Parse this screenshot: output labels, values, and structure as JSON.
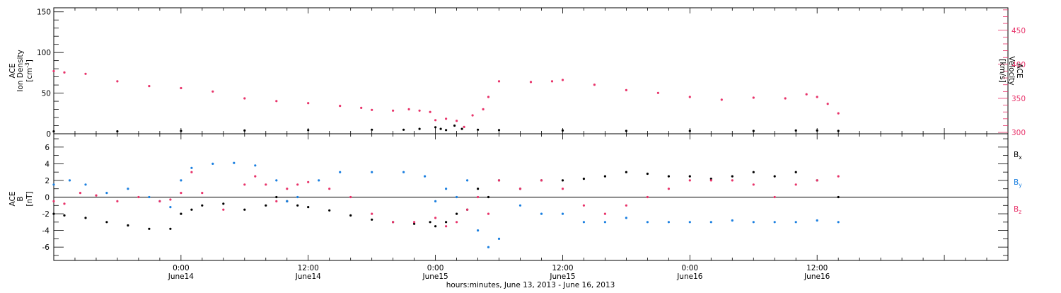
{
  "colors": {
    "axis": "#000000",
    "density": "#000000",
    "velocity": "#e8336a",
    "bx": "#000000",
    "by": "#1a7fe0",
    "bz": "#e8336a"
  },
  "x_axis": {
    "title": "hours:minutes, June 13, 2013 - June 16, 2013",
    "range": [
      0,
      90
    ],
    "ticks": [
      {
        "x": 12,
        "time": "0:00",
        "date": "June14"
      },
      {
        "x": 24,
        "time": "12:00",
        "date": "June14"
      },
      {
        "x": 36,
        "time": "0:00",
        "date": "June15"
      },
      {
        "x": 48,
        "time": "12:00",
        "date": "June15"
      },
      {
        "x": 60,
        "time": "0:00",
        "date": "June16"
      },
      {
        "x": 72,
        "time": "12:00",
        "date": "June16"
      }
    ]
  },
  "chart_data": [
    {
      "type": "scatter",
      "panel": "top",
      "left_axis": {
        "label_lines": [
          "ACE",
          "Ion Density"
        ],
        "unit_base": "[cm",
        "unit_sup": "-3",
        "unit_end": "]",
        "ylim": [
          0,
          155
        ],
        "ticks": [
          0,
          50,
          100,
          150
        ]
      },
      "right_axis": {
        "label_lines": [
          "ACE",
          "Velocity"
        ],
        "unit": "[km/s]",
        "ylim": [
          298,
          483
        ],
        "ticks": [
          300,
          350,
          400,
          450
        ]
      },
      "series": [
        {
          "key": "density",
          "axis": "left",
          "color_key": "density",
          "x": [
            0,
            6,
            12,
            18,
            24,
            30,
            33,
            34.5,
            36,
            36.5,
            37,
            37.8,
            38.5,
            40,
            42,
            48,
            54,
            60,
            66,
            70,
            72,
            74
          ],
          "y": [
            3,
            3,
            3.5,
            4,
            4.5,
            5,
            5,
            6,
            8,
            6,
            4.5,
            10,
            6,
            5,
            4.5,
            4,
            3.5,
            3.5,
            3.5,
            4,
            4,
            3.5
          ]
        },
        {
          "key": "velocity",
          "axis": "right",
          "color_key": "velocity",
          "x": [
            0,
            1,
            3,
            6,
            9,
            12,
            15,
            18,
            21,
            24,
            27,
            29,
            30,
            32,
            33.5,
            34.5,
            35.5,
            36,
            37,
            38,
            38.7,
            39.5,
            40.5,
            41,
            42,
            45,
            47,
            48,
            51,
            54,
            57,
            60,
            63,
            66,
            69,
            71,
            72,
            73,
            74
          ],
          "y": [
            390,
            388,
            386,
            375,
            368,
            365,
            360,
            350,
            346,
            343,
            339,
            336,
            333,
            332,
            334,
            332,
            330,
            318,
            320,
            317,
            308,
            325,
            334,
            352,
            375,
            374,
            375,
            377,
            370,
            362,
            358,
            352,
            348,
            351,
            350,
            356,
            352,
            342,
            328
          ]
        }
      ]
    },
    {
      "type": "scatter",
      "panel": "bottom",
      "left_axis": {
        "label_lines": [
          "ACE",
          "B"
        ],
        "unit": "[nT]",
        "ylim": [
          -7.6,
          7.6
        ],
        "ticks": [
          -6,
          -4,
          -2,
          0,
          2,
          4,
          6
        ]
      },
      "legend": [
        {
          "base": "B",
          "sub": "x",
          "color_key": "bx"
        },
        {
          "base": "B",
          "sub": "y",
          "color_key": "by"
        },
        {
          "base": "B",
          "sub": "z",
          "color_key": "bz"
        }
      ],
      "series": [
        {
          "key": "bx",
          "color_key": "bx",
          "x": [
            0,
            1,
            3,
            5,
            7,
            9,
            11,
            12,
            13,
            14,
            16,
            18,
            20,
            21,
            22,
            23,
            24,
            26,
            28,
            30,
            32,
            34,
            35.5,
            36,
            37,
            38,
            39,
            40,
            41,
            42,
            44,
            46,
            48,
            50,
            52,
            54,
            56,
            58,
            60,
            62,
            64,
            66,
            68,
            70,
            72,
            74
          ],
          "y": [
            -2,
            -2.2,
            -2.5,
            -3,
            -3.4,
            -3.8,
            -3.8,
            -2,
            -1.5,
            -1,
            -0.8,
            -1.5,
            -1,
            0,
            -0.5,
            -1,
            -1.2,
            -1.6,
            -2.2,
            -2.7,
            -3,
            -3.2,
            -3,
            -3.5,
            -3,
            -2,
            -1.5,
            1,
            0,
            2,
            1,
            2,
            2,
            2.2,
            2.5,
            3,
            2.8,
            2.5,
            2.5,
            2.2,
            2.5,
            3,
            2.5,
            3,
            2,
            0
          ]
        },
        {
          "key": "by",
          "color_key": "by",
          "x": [
            0,
            1.5,
            3,
            5,
            7,
            9,
            10,
            11,
            12,
            13,
            15,
            17,
            19,
            21,
            22,
            23,
            25,
            27,
            30,
            33,
            35,
            36,
            37,
            38,
            39,
            40,
            41,
            42,
            44,
            46,
            48,
            50,
            52,
            54,
            56,
            58,
            60,
            62,
            64,
            66,
            68,
            70,
            72,
            74
          ],
          "y": [
            1.5,
            2,
            1.5,
            0.5,
            1,
            0,
            -0.5,
            -1.2,
            2,
            3.5,
            4,
            4.1,
            3.8,
            2,
            -0.5,
            0,
            2,
            3,
            3,
            3,
            2.5,
            -0.5,
            1,
            0,
            2,
            -4,
            -6,
            -5,
            -1,
            -2,
            -2,
            -3,
            -3,
            -2.5,
            -3,
            -3,
            -3,
            -3,
            -2.8,
            -3,
            -3,
            -3,
            -2.8,
            -3
          ]
        },
        {
          "key": "bz",
          "color_key": "bz",
          "x": [
            0,
            1,
            2.5,
            4,
            6,
            8,
            10,
            11,
            12,
            13,
            14,
            16,
            18,
            19,
            20,
            21,
            22,
            23,
            24,
            26,
            28,
            30,
            32,
            34,
            36,
            37,
            38,
            39,
            40,
            41,
            42,
            44,
            46,
            48,
            50,
            52,
            54,
            56,
            58,
            60,
            62,
            64,
            66,
            68,
            70,
            72,
            74
          ],
          "y": [
            -0.5,
            -0.8,
            0.5,
            0.2,
            -0.5,
            0,
            -0.5,
            -0.3,
            0.5,
            3,
            0.5,
            -1.5,
            1.5,
            2.5,
            1.5,
            -0.5,
            1,
            1.5,
            1.8,
            1,
            0,
            -2,
            -3,
            -3,
            -2.5,
            -3.5,
            -3,
            -1.5,
            0,
            -2,
            2,
            1,
            2,
            1,
            -1,
            -2,
            -1,
            0,
            1,
            2,
            2,
            2,
            1.5,
            0,
            1.5,
            2,
            2.5
          ]
        }
      ],
      "zero_line": 0
    }
  ]
}
